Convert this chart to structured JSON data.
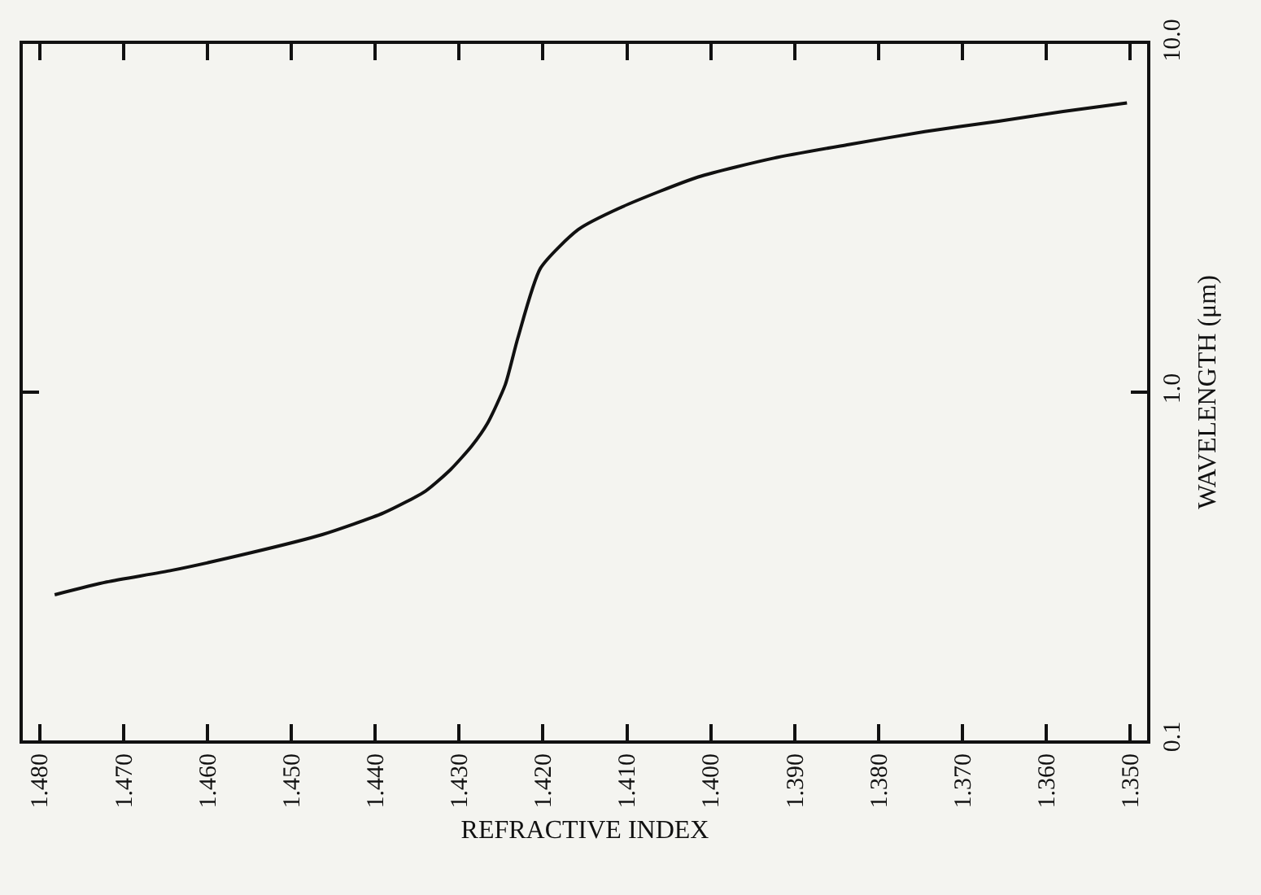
{
  "chart_data": {
    "type": "line",
    "xlabel": "REFRACTIVE INDEX",
    "ylabel": "WAVELENGTH (μm)",
    "x": [
      1.4782,
      1.472,
      1.4642,
      1.455,
      1.4463,
      1.439,
      1.434,
      1.431,
      1.4285,
      1.4266,
      1.4245,
      1.423,
      1.4203,
      1.4158,
      1.4105,
      1.4015,
      1.3925,
      1.3836,
      1.3745,
      1.3657,
      1.358,
      1.3504
    ],
    "series": [
      {
        "color": "#111111",
        "values": [
          0.262,
          0.285,
          0.308,
          0.345,
          0.39,
          0.45,
          0.52,
          0.6,
          0.7,
          0.815,
          1.05,
          1.43,
          2.27,
          2.93,
          3.41,
          4.15,
          4.7,
          5.14,
          5.6,
          6.0,
          6.4,
          6.77
        ]
      }
    ],
    "xlim": [
      1.482,
      1.348
    ],
    "ylim": [
      0.1,
      10
    ],
    "log": true,
    "grid": false,
    "marker": "none",
    "line_style": "solid",
    "xticks": [
      {
        "value": 1.48,
        "label": "1.480"
      },
      {
        "value": 1.47,
        "label": "1.470"
      },
      {
        "value": 1.46,
        "label": "1.460"
      },
      {
        "value": 1.45,
        "label": "1.450"
      },
      {
        "value": 1.44,
        "label": "1.440"
      },
      {
        "value": 1.43,
        "label": "1.430"
      },
      {
        "value": 1.42,
        "label": "1.420"
      },
      {
        "value": 1.41,
        "label": "1.410"
      },
      {
        "value": 1.4,
        "label": "1.400"
      },
      {
        "value": 1.39,
        "label": "1.390"
      },
      {
        "value": 1.38,
        "label": "1.380"
      },
      {
        "value": 1.37,
        "label": "1.370"
      },
      {
        "value": 1.36,
        "label": "1.360"
      },
      {
        "value": 1.35,
        "label": "1.350"
      }
    ],
    "yticks": [
      0.1,
      {
        "value": 1,
        "label": "1.0"
      },
      {
        "value": 10,
        "label": "10.0"
      }
    ]
  }
}
